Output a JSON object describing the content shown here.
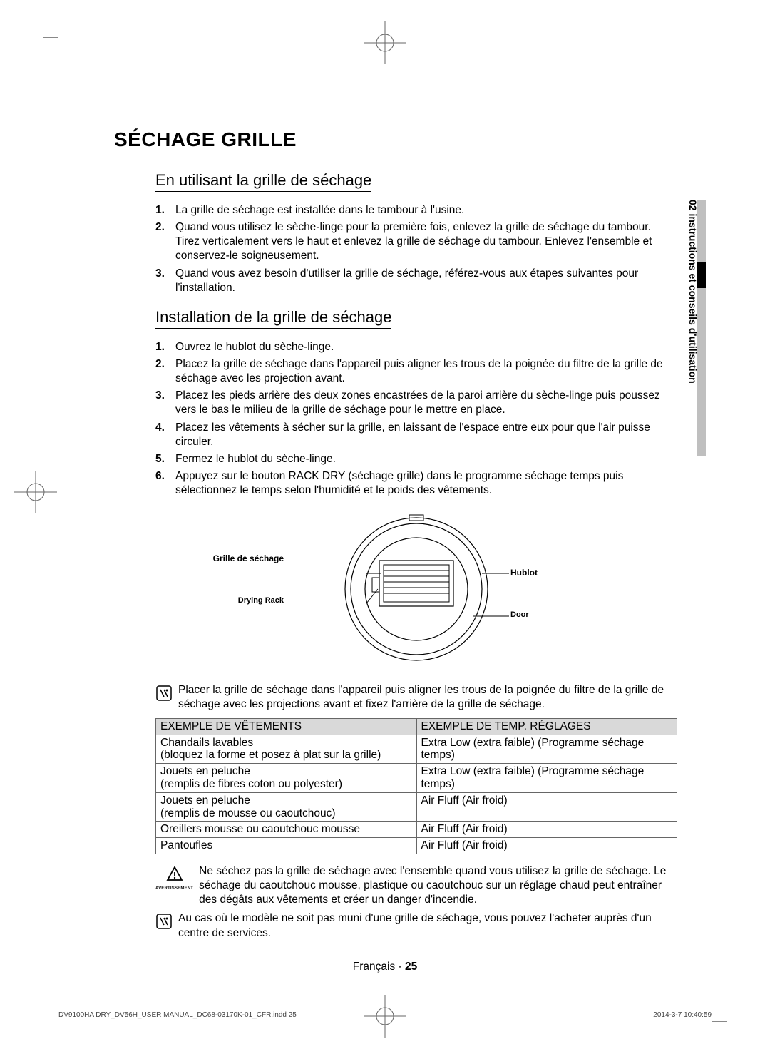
{
  "side_tab": "02 instructions et conseils d'utilisation",
  "main_title": "SÉCHAGE GRILLE",
  "section_using": {
    "title": "En utilisant la grille de séchage",
    "steps": [
      "La grille de séchage est installée dans le tambour à l'usine.",
      "Quand vous utilisez le sèche-linge pour la première fois, enlevez la grille de séchage du tambour. Tirez verticalement vers le haut et enlevez la grille de séchage du tambour. Enlevez l'ensemble et conservez-le soigneusement.",
      "Quand vous avez besoin d'utiliser la grille de séchage, référez-vous aux étapes suivantes pour l'installation."
    ]
  },
  "section_install": {
    "title": "Installation de la grille de séchage",
    "steps": [
      "Ouvrez le hublot du sèche-linge.",
      "Placez la grille de séchage dans l'appareil puis aligner les trous de la poignée du filtre de la grille de séchage avec les projection avant.",
      "Placez les pieds arrière des deux zones encastrées de la paroi arrière du sèche-linge puis poussez vers le bas le milieu de la grille de séchage pour le mettre en place.",
      "Placez les vêtements à sécher sur la grille, en laissant de l'espace entre eux pour que l'air puisse circuler.",
      "Fermez le hublot du sèche-linge.",
      "Appuyez sur le bouton RACK DRY (séchage grille) dans le programme séchage temps puis sélectionnez le temps selon l'humidité et le poids des vêtements."
    ]
  },
  "diagram": {
    "label_grille": "Grille de séchage",
    "label_rack": "Drying Rack",
    "label_hublot": "Hublot",
    "label_door": "Door"
  },
  "note1": "Placer la grille de séchage dans l'appareil puis aligner les trous de la poignée du filtre de la grille de séchage avec les projections avant et fixez l'arrière de la grille de séchage.",
  "table": {
    "header1": "EXEMPLE DE VÊTEMENTS",
    "header2": "EXEMPLE DE TEMP. RÉGLAGES",
    "rows": [
      [
        "Chandails lavables\n(bloquez la forme et posez à plat sur la grille)",
        "Extra Low (extra faible) (Programme séchage temps)"
      ],
      [
        "Jouets en peluche\n(remplis de fibres coton ou polyester)",
        "Extra Low (extra faible) (Programme séchage temps)"
      ],
      [
        "Jouets en peluche\n(remplis de mousse ou caoutchouc)",
        "Air Fluff (Air froid)"
      ],
      [
        "Oreillers mousse ou caoutchouc mousse",
        "Air Fluff (Air froid)"
      ],
      [
        "Pantoufles",
        "Air Fluff (Air froid)"
      ]
    ]
  },
  "warning_label": "AVERTISSEMENT",
  "warning_text": "Ne séchez pas la grille de séchage avec l'ensemble quand vous utilisez la grille de séchage. Le séchage du caoutchouc mousse, plastique ou caoutchouc sur un réglage chaud peut entraîner des dégâts aux vêtements et créer un danger d'incendie.",
  "note2": "Au cas où le modèle ne soit pas muni d'une grille de séchage, vous pouvez l'acheter auprès d'un centre de services.",
  "page_lang": "Français - ",
  "page_num": "25",
  "footer_left": "DV9100HA DRY_DV56H_USER MANUAL_DC68-03170K-01_CFR.indd   25",
  "footer_right": "2014-3-7   10:40:59"
}
